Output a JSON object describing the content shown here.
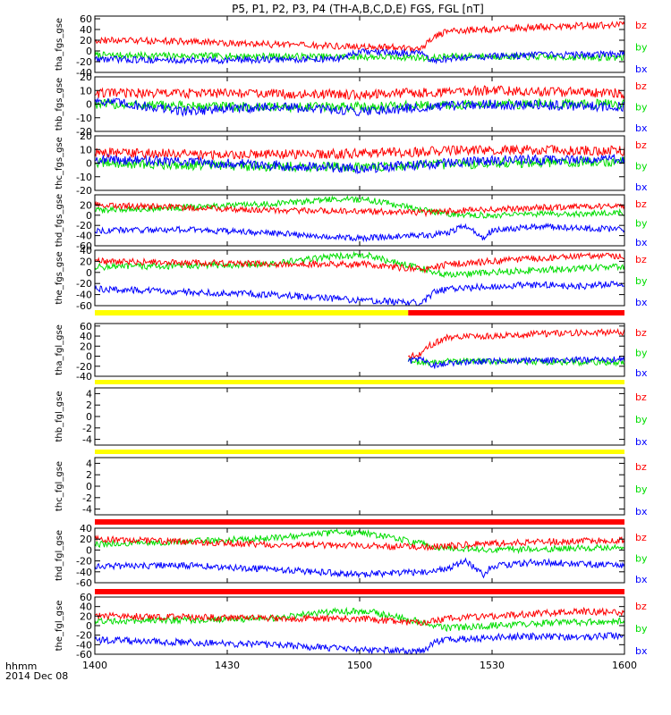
{
  "title": "P5, P1, P2, P3, P4 (TH-A,B,C,D,E) FGS, FGL [nT]",
  "time_axis": {
    "ticks": [
      "1400",
      "1430",
      "1500",
      "1530",
      "1600"
    ],
    "tick_minutes": [
      0,
      30,
      60,
      90,
      120
    ],
    "range_minutes": [
      0,
      120
    ],
    "label_line1": "hhmm",
    "label_line2": "2014 Dec 08"
  },
  "colors": {
    "bz": "#ff0000",
    "by": "#00dd00",
    "bx": "#0000ff",
    "axis": "#000000",
    "bar_yellow": "#ffff00",
    "bar_red": "#ff0000"
  },
  "chart_data": [
    {
      "type": "line",
      "label": "tha_fgs_gse",
      "ylim": [
        -40,
        65
      ],
      "yticks": [
        -40,
        -20,
        0,
        20,
        40,
        60
      ],
      "yticklabels": [
        "-40",
        "-20",
        "0",
        "20",
        "40",
        "60"
      ],
      "series": [
        {
          "name": "bz",
          "x": [
            0,
            20,
            40,
            60,
            74,
            76,
            80,
            90,
            100,
            110,
            120
          ],
          "y": [
            20,
            18,
            12,
            8,
            5,
            22,
            38,
            40,
            44,
            47,
            48
          ],
          "noise": 2
        },
        {
          "name": "by",
          "x": [
            0,
            20,
            40,
            60,
            74,
            76,
            80,
            90,
            100,
            110,
            120
          ],
          "y": [
            -8,
            -9,
            -10,
            -11,
            -12,
            -14,
            -10,
            -10,
            -11,
            -12,
            -12
          ],
          "noise": 2
        },
        {
          "name": "bx",
          "x": [
            0,
            20,
            40,
            55,
            60,
            74,
            76,
            80,
            90,
            100,
            110,
            120
          ],
          "y": [
            -15,
            -18,
            -16,
            -15,
            -2,
            -4,
            -20,
            -14,
            -10,
            -8,
            -7,
            -6
          ],
          "noise": 2
        }
      ]
    },
    {
      "type": "line",
      "label": "thb_fgs_gse",
      "ylim": [
        -20,
        20
      ],
      "yticks": [
        -20,
        -10,
        0,
        10,
        20
      ],
      "yticklabels": [
        "-20",
        "-10",
        "0",
        "10",
        "20"
      ],
      "series": [
        {
          "name": "bz",
          "x": [
            0,
            30,
            60,
            90,
            120
          ],
          "y": [
            8,
            8,
            7,
            10,
            8
          ],
          "noise": 3
        },
        {
          "name": "by",
          "x": [
            0,
            30,
            60,
            90,
            120
          ],
          "y": [
            0,
            -2,
            -2,
            0,
            0
          ],
          "noise": 3
        },
        {
          "name": "bx",
          "x": [
            0,
            20,
            40,
            60,
            90,
            120
          ],
          "y": [
            3,
            -5,
            -2,
            -5,
            0,
            -2
          ],
          "noise": 3
        }
      ]
    },
    {
      "type": "line",
      "label": "thc_fgs_gse",
      "ylim": [
        -20,
        20
      ],
      "yticks": [
        -20,
        -10,
        0,
        10,
        20
      ],
      "yticklabels": [
        "-20",
        "-10",
        "0",
        "10",
        "20"
      ],
      "series": [
        {
          "name": "bz",
          "x": [
            0,
            30,
            60,
            90,
            120
          ],
          "y": [
            8,
            6,
            7,
            10,
            9
          ],
          "noise": 3
        },
        {
          "name": "by",
          "x": [
            0,
            30,
            60,
            90,
            120
          ],
          "y": [
            0,
            -2,
            -3,
            0,
            1
          ],
          "noise": 3
        },
        {
          "name": "bx",
          "x": [
            0,
            30,
            60,
            90,
            120
          ],
          "y": [
            3,
            0,
            -4,
            2,
            3
          ],
          "noise": 3
        }
      ]
    },
    {
      "type": "line",
      "label": "thd_fgs_gse",
      "ylim": [
        -60,
        40
      ],
      "yticks": [
        -60,
        -40,
        -20,
        0,
        20
      ],
      "yticklabels": [
        "-60",
        "-40",
        "-20",
        "0",
        "20"
      ],
      "series": [
        {
          "name": "bz",
          "x": [
            0,
            20,
            40,
            60,
            75,
            85,
            100,
            120
          ],
          "y": [
            20,
            15,
            10,
            8,
            5,
            10,
            15,
            18
          ],
          "noise": 2
        },
        {
          "name": "by",
          "x": [
            0,
            20,
            40,
            55,
            62,
            75,
            80,
            90,
            100,
            120
          ],
          "y": [
            10,
            15,
            22,
            32,
            30,
            10,
            2,
            0,
            2,
            5
          ],
          "noise": 2
        },
        {
          "name": "bx",
          "x": [
            0,
            20,
            40,
            60,
            75,
            80,
            84,
            88,
            90,
            100,
            110,
            120
          ],
          "y": [
            -30,
            -28,
            -35,
            -45,
            -40,
            -35,
            -20,
            -45,
            -30,
            -22,
            -25,
            -28
          ],
          "noise": 2
        }
      ]
    },
    {
      "type": "line",
      "label": "the_fgs_gse",
      "ylim": [
        -60,
        40
      ],
      "yticks": [
        -60,
        -40,
        -20,
        0,
        20,
        40
      ],
      "yticklabels": [
        "-60",
        "-40",
        "-20",
        "0",
        "20",
        "40"
      ],
      "series": [
        {
          "name": "bz",
          "x": [
            0,
            20,
            40,
            60,
            75,
            80,
            90,
            100,
            110,
            120
          ],
          "y": [
            20,
            18,
            15,
            15,
            5,
            15,
            20,
            25,
            30,
            28
          ],
          "noise": 2
        },
        {
          "name": "by",
          "x": [
            0,
            20,
            40,
            55,
            62,
            75,
            80,
            90,
            100,
            120
          ],
          "y": [
            10,
            12,
            15,
            30,
            30,
            5,
            -5,
            0,
            5,
            10
          ],
          "noise": 2
        },
        {
          "name": "bx",
          "x": [
            0,
            20,
            40,
            60,
            74,
            77,
            80,
            90,
            100,
            110,
            120
          ],
          "y": [
            -30,
            -35,
            -40,
            -50,
            -55,
            -35,
            -30,
            -25,
            -22,
            -25,
            -20
          ],
          "noise": 2
        }
      ]
    },
    {
      "type": "line",
      "label": "tha_fgl_gse",
      "ylim": [
        -40,
        65
      ],
      "yticks": [
        -40,
        -20,
        0,
        20,
        40,
        60
      ],
      "yticklabels": [
        "-40",
        "-20",
        "0",
        "20",
        "40",
        "60"
      ],
      "bar": [
        {
          "x_start": 0,
          "x_end": 71,
          "color": "bar_yellow"
        },
        {
          "x_start": 71,
          "x_end": 120,
          "color": "bar_red"
        }
      ],
      "series": [
        {
          "name": "bz",
          "x": [
            71,
            74,
            76,
            80,
            90,
            100,
            110,
            120
          ],
          "y": [
            0,
            5,
            22,
            38,
            40,
            44,
            47,
            48
          ],
          "noise": 2
        },
        {
          "name": "by",
          "x": [
            71,
            74,
            76,
            80,
            90,
            100,
            110,
            120
          ],
          "y": [
            -10,
            -12,
            -14,
            -10,
            -10,
            -11,
            -12,
            -12
          ],
          "noise": 2
        },
        {
          "name": "bx",
          "x": [
            71,
            74,
            76,
            80,
            90,
            100,
            110,
            120
          ],
          "y": [
            -10,
            -4,
            -20,
            -14,
            -10,
            -8,
            -7,
            -6
          ],
          "noise": 2
        }
      ]
    },
    {
      "type": "line",
      "label": "thb_fgl_gse",
      "ylim": [
        -5,
        5
      ],
      "yticks": [
        -4,
        -2,
        0,
        2,
        4
      ],
      "yticklabels": [
        "-4",
        "-2",
        "0",
        "2",
        "4"
      ],
      "bar": [
        {
          "x_start": 0,
          "x_end": 120,
          "color": "bar_yellow"
        }
      ],
      "series": []
    },
    {
      "type": "line",
      "label": "thc_fgl_gse",
      "ylim": [
        -5,
        5
      ],
      "yticks": [
        -4,
        -2,
        0,
        2,
        4
      ],
      "yticklabels": [
        "-4",
        "-2",
        "0",
        "2",
        "4"
      ],
      "bar": [
        {
          "x_start": 0,
          "x_end": 120,
          "color": "bar_yellow"
        }
      ],
      "series": []
    },
    {
      "type": "line",
      "label": "thd_fgl_gse",
      "ylim": [
        -60,
        40
      ],
      "yticks": [
        -60,
        -40,
        -20,
        0,
        20,
        40
      ],
      "yticklabels": [
        "-60",
        "-40",
        "-20",
        "0",
        "20",
        "40"
      ],
      "bar": [
        {
          "x_start": 0,
          "x_end": 120,
          "color": "bar_red"
        }
      ],
      "series": [
        {
          "name": "bz",
          "x": [
            0,
            20,
            40,
            60,
            75,
            85,
            100,
            120
          ],
          "y": [
            20,
            15,
            10,
            8,
            5,
            10,
            15,
            18
          ],
          "noise": 2
        },
        {
          "name": "by",
          "x": [
            0,
            20,
            40,
            55,
            62,
            75,
            80,
            90,
            100,
            120
          ],
          "y": [
            10,
            15,
            22,
            32,
            30,
            10,
            2,
            0,
            2,
            5
          ],
          "noise": 2
        },
        {
          "name": "bx",
          "x": [
            0,
            20,
            40,
            60,
            75,
            80,
            84,
            88,
            90,
            100,
            110,
            120
          ],
          "y": [
            -30,
            -28,
            -35,
            -45,
            -40,
            -35,
            -20,
            -45,
            -30,
            -22,
            -25,
            -28
          ],
          "noise": 2
        }
      ]
    },
    {
      "type": "line",
      "label": "the_fgl_gse",
      "ylim": [
        -60,
        60
      ],
      "yticks": [
        -60,
        -40,
        -20,
        0,
        20,
        40,
        60
      ],
      "yticklabels": [
        "-60",
        "-40",
        "-20",
        "0",
        "20",
        "40",
        "60"
      ],
      "bar": [
        {
          "x_start": 0,
          "x_end": 120,
          "color": "bar_red"
        }
      ],
      "series": [
        {
          "name": "bz",
          "x": [
            0,
            20,
            40,
            60,
            75,
            80,
            90,
            100,
            110,
            120
          ],
          "y": [
            20,
            18,
            15,
            15,
            5,
            15,
            20,
            25,
            30,
            28
          ],
          "noise": 2
        },
        {
          "name": "by",
          "x": [
            0,
            20,
            40,
            55,
            62,
            75,
            80,
            90,
            100,
            120
          ],
          "y": [
            10,
            12,
            15,
            30,
            30,
            5,
            -5,
            0,
            5,
            10
          ],
          "noise": 2
        },
        {
          "name": "bx",
          "x": [
            0,
            20,
            40,
            60,
            74,
            77,
            80,
            90,
            100,
            110,
            120
          ],
          "y": [
            -30,
            -35,
            -40,
            -50,
            -55,
            -35,
            -30,
            -25,
            -22,
            -25,
            -20
          ],
          "noise": 2
        }
      ]
    }
  ]
}
